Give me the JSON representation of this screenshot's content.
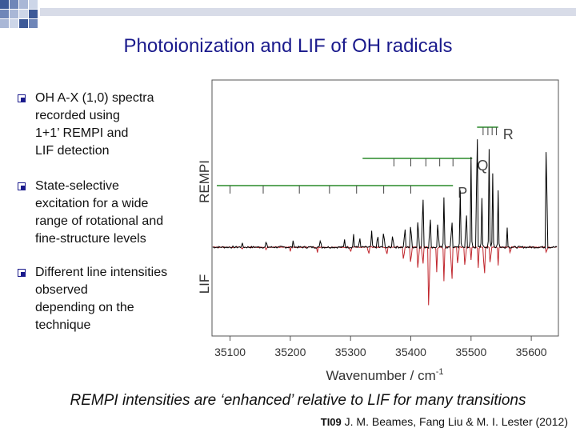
{
  "slide": {
    "title": "Photoionization and LIF of OH radicals",
    "caption": "REMPI intensities are ‘enhanced’ relative to LIF for many transitions",
    "citation_code": "TI09",
    "citation_text": " J. M. Beames, Fang Liu & M. I. Lester (2012)",
    "bullets": [
      {
        "text": "OH A-X (1,0) spectra\nrecorded using\n1+1’ REMPI and\nLIF detection"
      },
      {
        "text": "State-selective\nexcitation for a wide\nrange of rotational and\nfine-structure levels"
      },
      {
        "text": "Different line intensities\nobserved\ndepending on the\ntechnique"
      }
    ]
  },
  "chart_data": {
    "type": "line",
    "xlabel": "Wavenumber / cm",
    "xlabel_superscript": "-1",
    "upper_panel_label": "REMPI",
    "lower_panel_label": "LIF",
    "xlim": [
      35070,
      35645
    ],
    "x_ticks": [
      35100,
      35200,
      35300,
      35400,
      35500,
      35600
    ],
    "branches": [
      {
        "name": "R",
        "line_from": 35510,
        "line_to": 35545,
        "ticks": [
          35520,
          35528,
          35535,
          35542
        ]
      },
      {
        "name": "Q",
        "line_from": 35320,
        "line_to": 35502,
        "ticks": [
          35372,
          35400,
          35425,
          35448,
          35470
        ]
      },
      {
        "name": "P",
        "line_from": 35078,
        "line_to": 35470,
        "ticks": [
          35100,
          35155,
          35215,
          35265,
          35310,
          35355,
          35400
        ]
      }
    ],
    "series": [
      {
        "name": "REMPI",
        "color": "#000000",
        "peaks": [
          [
            35120,
            0.03
          ],
          [
            35160,
            0.04
          ],
          [
            35205,
            0.05
          ],
          [
            35250,
            0.06
          ],
          [
            35290,
            0.05
          ],
          [
            35305,
            0.08
          ],
          [
            35315,
            0.07
          ],
          [
            35335,
            0.1
          ],
          [
            35345,
            0.09
          ],
          [
            35355,
            0.12
          ],
          [
            35370,
            0.1
          ],
          [
            35390,
            0.15
          ],
          [
            35400,
            0.18
          ],
          [
            35412,
            0.22
          ],
          [
            35420,
            0.42
          ],
          [
            35432,
            0.24
          ],
          [
            35445,
            0.2
          ],
          [
            35455,
            0.3
          ],
          [
            35468,
            0.22
          ],
          [
            35482,
            0.35
          ],
          [
            35492,
            0.28
          ],
          [
            35500,
            0.55
          ],
          [
            35510,
            0.95
          ],
          [
            35518,
            0.3
          ],
          [
            35530,
            0.6
          ],
          [
            35536,
            0.45
          ],
          [
            35545,
            0.35
          ],
          [
            35560,
            0.12
          ],
          [
            35625,
            0.85
          ]
        ]
      },
      {
        "name": "LIF",
        "color": "#c0262d",
        "peaks": [
          [
            35120,
            -0.03
          ],
          [
            35160,
            -0.04
          ],
          [
            35200,
            -0.05
          ],
          [
            35245,
            -0.06
          ],
          [
            35300,
            -0.07
          ],
          [
            35330,
            -0.1
          ],
          [
            35360,
            -0.12
          ],
          [
            35388,
            -0.2
          ],
          [
            35400,
            -0.25
          ],
          [
            35412,
            -0.35
          ],
          [
            35420,
            -0.28
          ],
          [
            35430,
            -1.0
          ],
          [
            35443,
            -0.3
          ],
          [
            35455,
            -0.4
          ],
          [
            35468,
            -0.55
          ],
          [
            35478,
            -0.28
          ],
          [
            35490,
            -0.3
          ],
          [
            35500,
            -0.15
          ],
          [
            35512,
            -0.25
          ],
          [
            35522,
            -0.45
          ],
          [
            35532,
            -0.25
          ],
          [
            35545,
            -0.22
          ],
          [
            35565,
            -0.1
          ],
          [
            35625,
            -0.08
          ]
        ]
      }
    ],
    "colors": {
      "rempi": "#000000",
      "lif": "#c0262d",
      "branch": "#2a8a2a",
      "title": "#1a1a8c"
    }
  }
}
